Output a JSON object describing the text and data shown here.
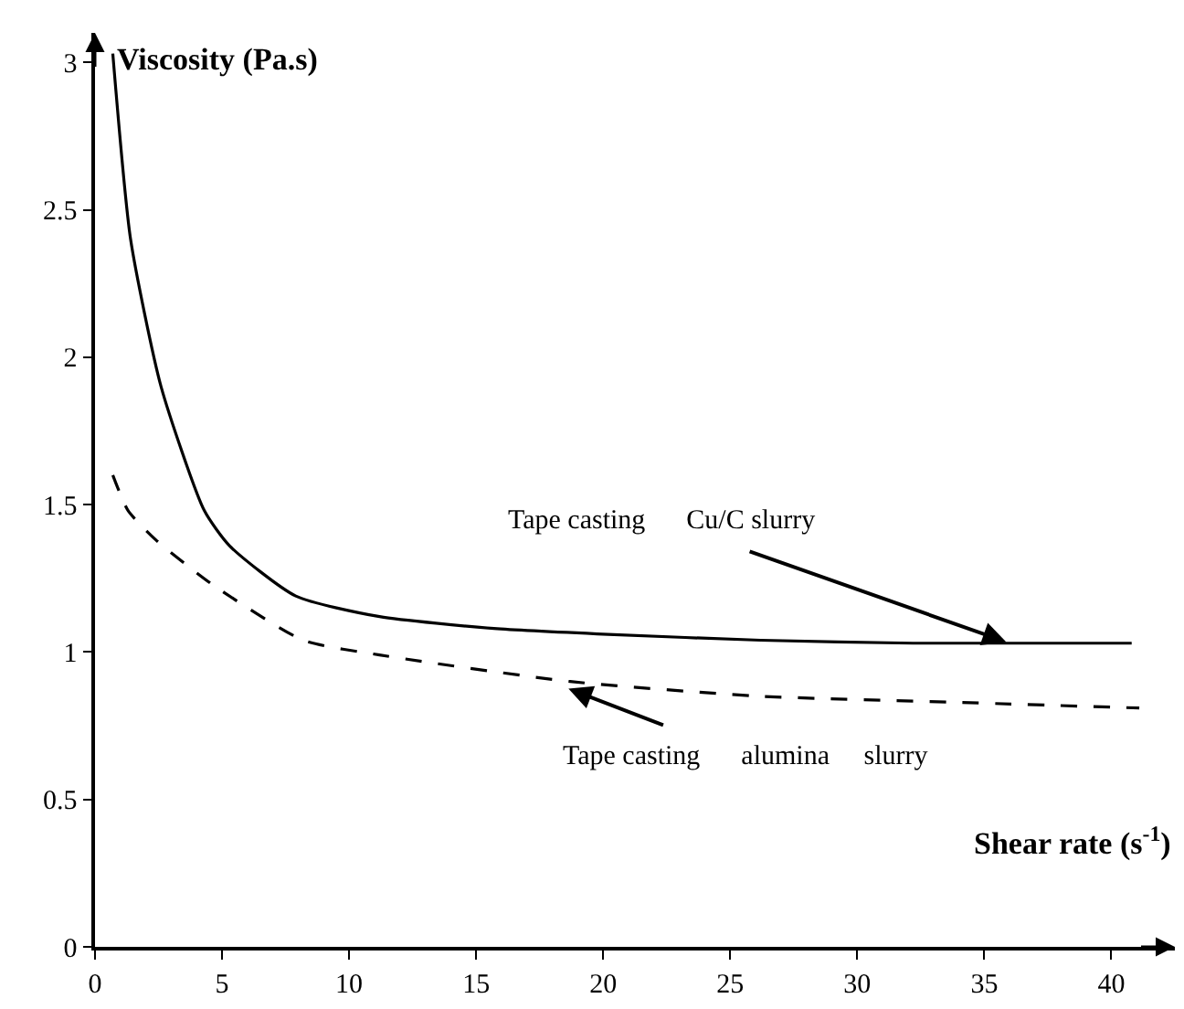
{
  "chart_data": {
    "type": "line",
    "xlabel": "Shear rate (s$^{-1}$)",
    "ylabel": "Viscosity (Pa.s)",
    "series": [
      {
        "color": "#000000",
        "line_style": "solid",
        "x": [
          0.7,
          1.4,
          2.6,
          4.3,
          5.3,
          7.9,
          11.2,
          15.7,
          20.2,
          26.2,
          32.2,
          40.8
        ],
        "values": [
          3.03,
          2.4,
          1.9,
          1.48,
          1.36,
          1.19,
          1.12,
          1.08,
          1.06,
          1.04,
          1.03,
          1.03
        ]
      },
      {
        "color": "#000000",
        "line_style": "dashed",
        "x": [
          0.7,
          1.3,
          2.4,
          4.6,
          8.2,
          11.2,
          18.7,
          26.2,
          33.7,
          41.1
        ],
        "values": [
          1.6,
          1.48,
          1.38,
          1.23,
          1.04,
          0.99,
          0.9,
          0.85,
          0.83,
          0.81
        ]
      }
    ],
    "annotations": [
      {
        "text": "Tape casting      Cu/C slurry",
        "x": 36,
        "y": 1.03
      },
      {
        "text": "Tape casting      alumina     slurry",
        "x": 18.5,
        "y": 0.88
      }
    ],
    "xlim": [
      0,
      42.5
    ],
    "ylim": [
      0,
      3.1
    ],
    "xticks": [
      0,
      5,
      10,
      15,
      20,
      25,
      30,
      35,
      40
    ],
    "yticks": [
      0,
      0.5,
      1,
      1.5,
      2,
      2.5,
      3
    ],
    "legend": false,
    "marker": "none"
  }
}
